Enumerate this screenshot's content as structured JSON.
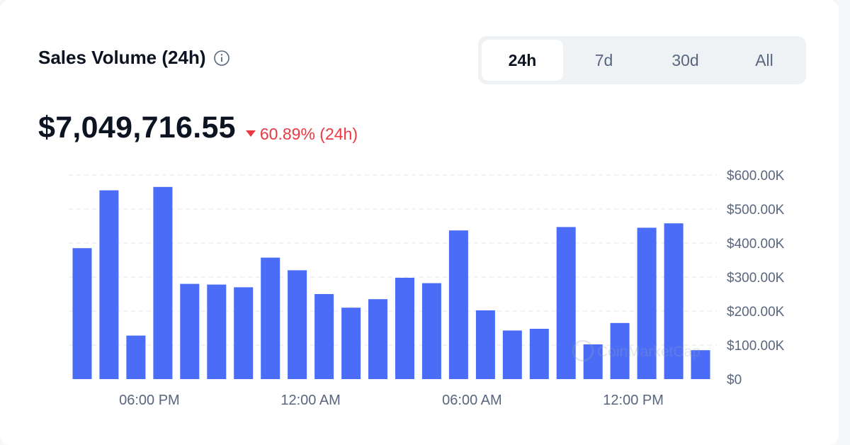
{
  "header": {
    "title": "Sales Volume (24h)",
    "info_icon": "info-circle-icon"
  },
  "tabs": [
    {
      "label": "24h",
      "active": true
    },
    {
      "label": "7d",
      "active": false
    },
    {
      "label": "30d",
      "active": false
    },
    {
      "label": "All",
      "active": false
    }
  ],
  "summary": {
    "value": "$7,049,716.55",
    "change": "60.89% (24h)",
    "change_direction": "down",
    "change_icon": "caret-down-icon"
  },
  "colors": {
    "bar": "#4a6cf7",
    "negative": "#ea3943",
    "text": "#0d1421",
    "axis_text": "#58667e",
    "grid": "#e6e9f2"
  },
  "watermark": "CoinMarketCap",
  "chart_data": {
    "type": "bar",
    "title": "",
    "xlabel": "",
    "ylabel": "",
    "ylim": [
      0,
      600000
    ],
    "y_ticks": [
      0,
      100000,
      200000,
      300000,
      400000,
      500000,
      600000
    ],
    "y_tick_labels": [
      "$0",
      "$100.00K",
      "$200.00K",
      "$300.00K",
      "$400.00K",
      "$500.00K",
      "$600.00K"
    ],
    "x_tick_labels": [
      "06:00 PM",
      "12:00 AM",
      "06:00 AM",
      "12:00 PM"
    ],
    "x_tick_positions": [
      3,
      9,
      15,
      21
    ],
    "grid": true,
    "y_axis_position": "right",
    "values": [
      385000,
      555000,
      128000,
      565000,
      280000,
      278000,
      270000,
      357000,
      320000,
      250000,
      210000,
      235000,
      298000,
      282000,
      437000,
      202000,
      143000,
      148000,
      447000,
      102000,
      165000,
      445000,
      458000,
      85000
    ]
  }
}
